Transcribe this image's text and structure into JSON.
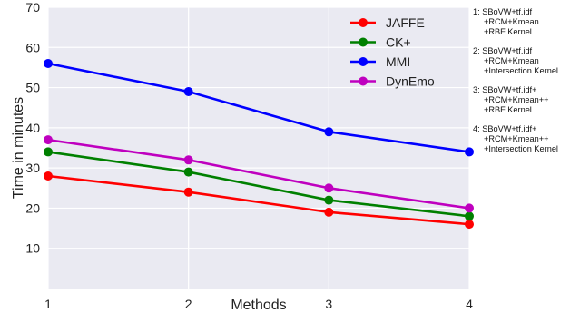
{
  "chart_data": {
    "type": "line",
    "title": "",
    "xlabel": "Methods",
    "ylabel": "Time in minutes",
    "x": [
      1,
      2,
      3,
      4
    ],
    "xticks": [
      "1",
      "2",
      "3",
      "4"
    ],
    "yticks": [
      "10",
      "20",
      "30",
      "40",
      "50",
      "60",
      "70"
    ],
    "xlim": [
      1,
      4
    ],
    "ylim": [
      0,
      70
    ],
    "grid": true,
    "legend_position": "top-right",
    "series": [
      {
        "name": "JAFFE",
        "color": "#ff0000",
        "values": [
          28,
          24,
          19,
          16
        ]
      },
      {
        "name": "CK+",
        "color": "#008000",
        "values": [
          34,
          29,
          22,
          18
        ]
      },
      {
        "name": "MMI",
        "color": "#0000ff",
        "values": [
          56,
          49,
          39,
          34
        ]
      },
      {
        "name": "DynEmo",
        "color": "#bf00bf",
        "values": [
          37,
          32,
          25,
          20
        ]
      }
    ],
    "annotations": [
      {
        "lines": [
          "1: SBoVW+tf.idf",
          "+RCM+Kmean",
          "+RBF Kernel"
        ]
      },
      {
        "lines": [
          "2: SBoVW+tf.idf",
          "+RCM+Kmean",
          "+Intersection Kernel"
        ]
      },
      {
        "lines": [
          "3: SBoVW+tf.idf+",
          "+RCM+Kmean++",
          "+RBF Kernel"
        ]
      },
      {
        "lines": [
          "4: SBoVW+tf.idf+",
          "+RCM+Kmean++",
          "+Intersection Kernel"
        ]
      }
    ]
  },
  "colors": {
    "plot_background": "#eaeaf2",
    "grid": "#ffffff"
  }
}
